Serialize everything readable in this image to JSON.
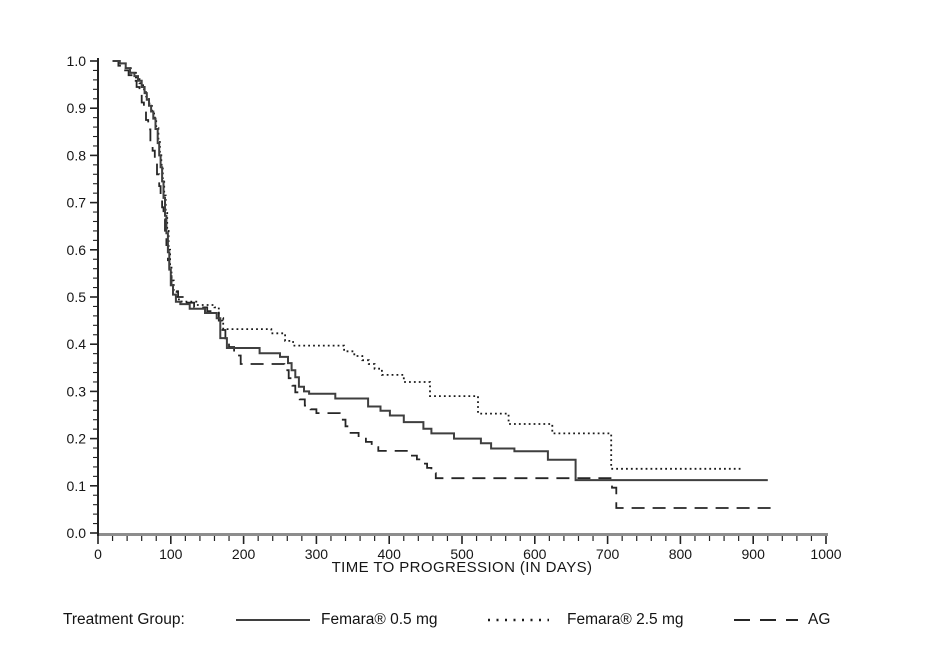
{
  "chart_data": {
    "type": "line",
    "subtype": "kaplan-meier-step",
    "title": "",
    "xlabel": "TIME TO PROGRESSION (IN DAYS)",
    "ylabel": "",
    "xlim": [
      0,
      1000
    ],
    "ylim": [
      0.0,
      1.0
    ],
    "x_tick_labels": [
      "0",
      "100",
      "200",
      "300",
      "400",
      "500",
      "600",
      "700",
      "800",
      "900",
      "1000"
    ],
    "x_ticks_major": [
      0,
      100,
      200,
      300,
      400,
      500,
      600,
      700,
      800,
      900,
      1000
    ],
    "x_minor_step": 20,
    "y_tick_labels": [
      "0.0",
      "0.1",
      "0.2",
      "0.3",
      "0.4",
      "0.5",
      "0.6",
      "0.7",
      "0.8",
      "0.9",
      "1.0"
    ],
    "y_ticks_major": [
      0,
      0.1,
      0.2,
      0.3,
      0.4,
      0.5,
      0.6,
      0.7,
      0.8,
      0.9,
      1.0
    ],
    "y_minor_step": 0.02,
    "grid": false,
    "legend_position": "bottom",
    "legend_prefix": "Treatment Group:",
    "axis_color": "#8d8d8d",
    "tick_color": "#222222",
    "series": [
      {
        "name": "Femara® 0.5 mg",
        "style": "solid",
        "color": "#3f3f3f",
        "points": [
          [
            20,
            1.0
          ],
          [
            30,
            0.995
          ],
          [
            38,
            0.985
          ],
          [
            44,
            0.975
          ],
          [
            50,
            0.968
          ],
          [
            55,
            0.958
          ],
          [
            60,
            0.945
          ],
          [
            64,
            0.932
          ],
          [
            67,
            0.918
          ],
          [
            70,
            0.905
          ],
          [
            73,
            0.893
          ],
          [
            76,
            0.878
          ],
          [
            79,
            0.856
          ],
          [
            82,
            0.826
          ],
          [
            84,
            0.8
          ],
          [
            86,
            0.775
          ],
          [
            88,
            0.745
          ],
          [
            90,
            0.71
          ],
          [
            92,
            0.672
          ],
          [
            94,
            0.635
          ],
          [
            96,
            0.595
          ],
          [
            98,
            0.558
          ],
          [
            100,
            0.525
          ],
          [
            103,
            0.505
          ],
          [
            107,
            0.49
          ],
          [
            113,
            0.485
          ],
          [
            126,
            0.475
          ],
          [
            147,
            0.466
          ],
          [
            163,
            0.455
          ],
          [
            168,
            0.413
          ],
          [
            177,
            0.392
          ],
          [
            222,
            0.381
          ],
          [
            250,
            0.373
          ],
          [
            261,
            0.36
          ],
          [
            266,
            0.345
          ],
          [
            271,
            0.33
          ],
          [
            276,
            0.31
          ],
          [
            283,
            0.3
          ],
          [
            290,
            0.295
          ],
          [
            326,
            0.285
          ],
          [
            371,
            0.268
          ],
          [
            388,
            0.259
          ],
          [
            401,
            0.249
          ],
          [
            420,
            0.235
          ],
          [
            447,
            0.221
          ],
          [
            458,
            0.211
          ],
          [
            489,
            0.2
          ],
          [
            526,
            0.19
          ],
          [
            540,
            0.179
          ],
          [
            572,
            0.173
          ],
          [
            618,
            0.155
          ],
          [
            656,
            0.112
          ],
          [
            920,
            0.112
          ]
        ]
      },
      {
        "name": "Femara® 2.5 mg",
        "style": "dotted",
        "color": "#1a1a1a",
        "points": [
          [
            20,
            1.0
          ],
          [
            30,
            0.995
          ],
          [
            38,
            0.985
          ],
          [
            45,
            0.975
          ],
          [
            52,
            0.965
          ],
          [
            57,
            0.953
          ],
          [
            62,
            0.94
          ],
          [
            66,
            0.925
          ],
          [
            70,
            0.91
          ],
          [
            74,
            0.895
          ],
          [
            77,
            0.88
          ],
          [
            80,
            0.858
          ],
          [
            83,
            0.832
          ],
          [
            85,
            0.806
          ],
          [
            87,
            0.78
          ],
          [
            89,
            0.75
          ],
          [
            91,
            0.715
          ],
          [
            93,
            0.678
          ],
          [
            95,
            0.64
          ],
          [
            97,
            0.6
          ],
          [
            99,
            0.565
          ],
          [
            101,
            0.535
          ],
          [
            104,
            0.512
          ],
          [
            108,
            0.495
          ],
          [
            115,
            0.49
          ],
          [
            135,
            0.483
          ],
          [
            160,
            0.478
          ],
          [
            166,
            0.455
          ],
          [
            172,
            0.432
          ],
          [
            238,
            0.423
          ],
          [
            257,
            0.407
          ],
          [
            268,
            0.397
          ],
          [
            338,
            0.385
          ],
          [
            352,
            0.375
          ],
          [
            363,
            0.366
          ],
          [
            372,
            0.358
          ],
          [
            380,
            0.348
          ],
          [
            390,
            0.335
          ],
          [
            420,
            0.32
          ],
          [
            456,
            0.29
          ],
          [
            522,
            0.253
          ],
          [
            564,
            0.231
          ],
          [
            624,
            0.211
          ],
          [
            705,
            0.136
          ],
          [
            885,
            0.136
          ]
        ]
      },
      {
        "name": "AG",
        "style": "long-dash",
        "color": "#262626",
        "points": [
          [
            20,
            1.0
          ],
          [
            28,
            0.99
          ],
          [
            35,
            0.98
          ],
          [
            42,
            0.97
          ],
          [
            48,
            0.958
          ],
          [
            53,
            0.945
          ],
          [
            57,
            0.93
          ],
          [
            60,
            0.912
          ],
          [
            63,
            0.895
          ],
          [
            66,
            0.875
          ],
          [
            69,
            0.855
          ],
          [
            72,
            0.832
          ],
          [
            75,
            0.81
          ],
          [
            78,
            0.785
          ],
          [
            81,
            0.76
          ],
          [
            84,
            0.735
          ],
          [
            86,
            0.71
          ],
          [
            88,
            0.69
          ],
          [
            90,
            0.665
          ],
          [
            92,
            0.638
          ],
          [
            94,
            0.61
          ],
          [
            96,
            0.578
          ],
          [
            98,
            0.548
          ],
          [
            101,
            0.525
          ],
          [
            105,
            0.512
          ],
          [
            110,
            0.5
          ],
          [
            118,
            0.488
          ],
          [
            132,
            0.478
          ],
          [
            150,
            0.47
          ],
          [
            166,
            0.45
          ],
          [
            171,
            0.43
          ],
          [
            175,
            0.41
          ],
          [
            180,
            0.394
          ],
          [
            187,
            0.376
          ],
          [
            196,
            0.358
          ],
          [
            256,
            0.345
          ],
          [
            262,
            0.328
          ],
          [
            267,
            0.312
          ],
          [
            271,
            0.298
          ],
          [
            277,
            0.283
          ],
          [
            284,
            0.27
          ],
          [
            292,
            0.262
          ],
          [
            300,
            0.254
          ],
          [
            332,
            0.24
          ],
          [
            340,
            0.226
          ],
          [
            347,
            0.212
          ],
          [
            358,
            0.202
          ],
          [
            368,
            0.193
          ],
          [
            376,
            0.182
          ],
          [
            385,
            0.174
          ],
          [
            430,
            0.164
          ],
          [
            438,
            0.156
          ],
          [
            446,
            0.147
          ],
          [
            452,
            0.138
          ],
          [
            458,
            0.127
          ],
          [
            464,
            0.116
          ],
          [
            706,
            0.096
          ],
          [
            712,
            0.053
          ],
          [
            930,
            0.053
          ]
        ]
      }
    ]
  }
}
